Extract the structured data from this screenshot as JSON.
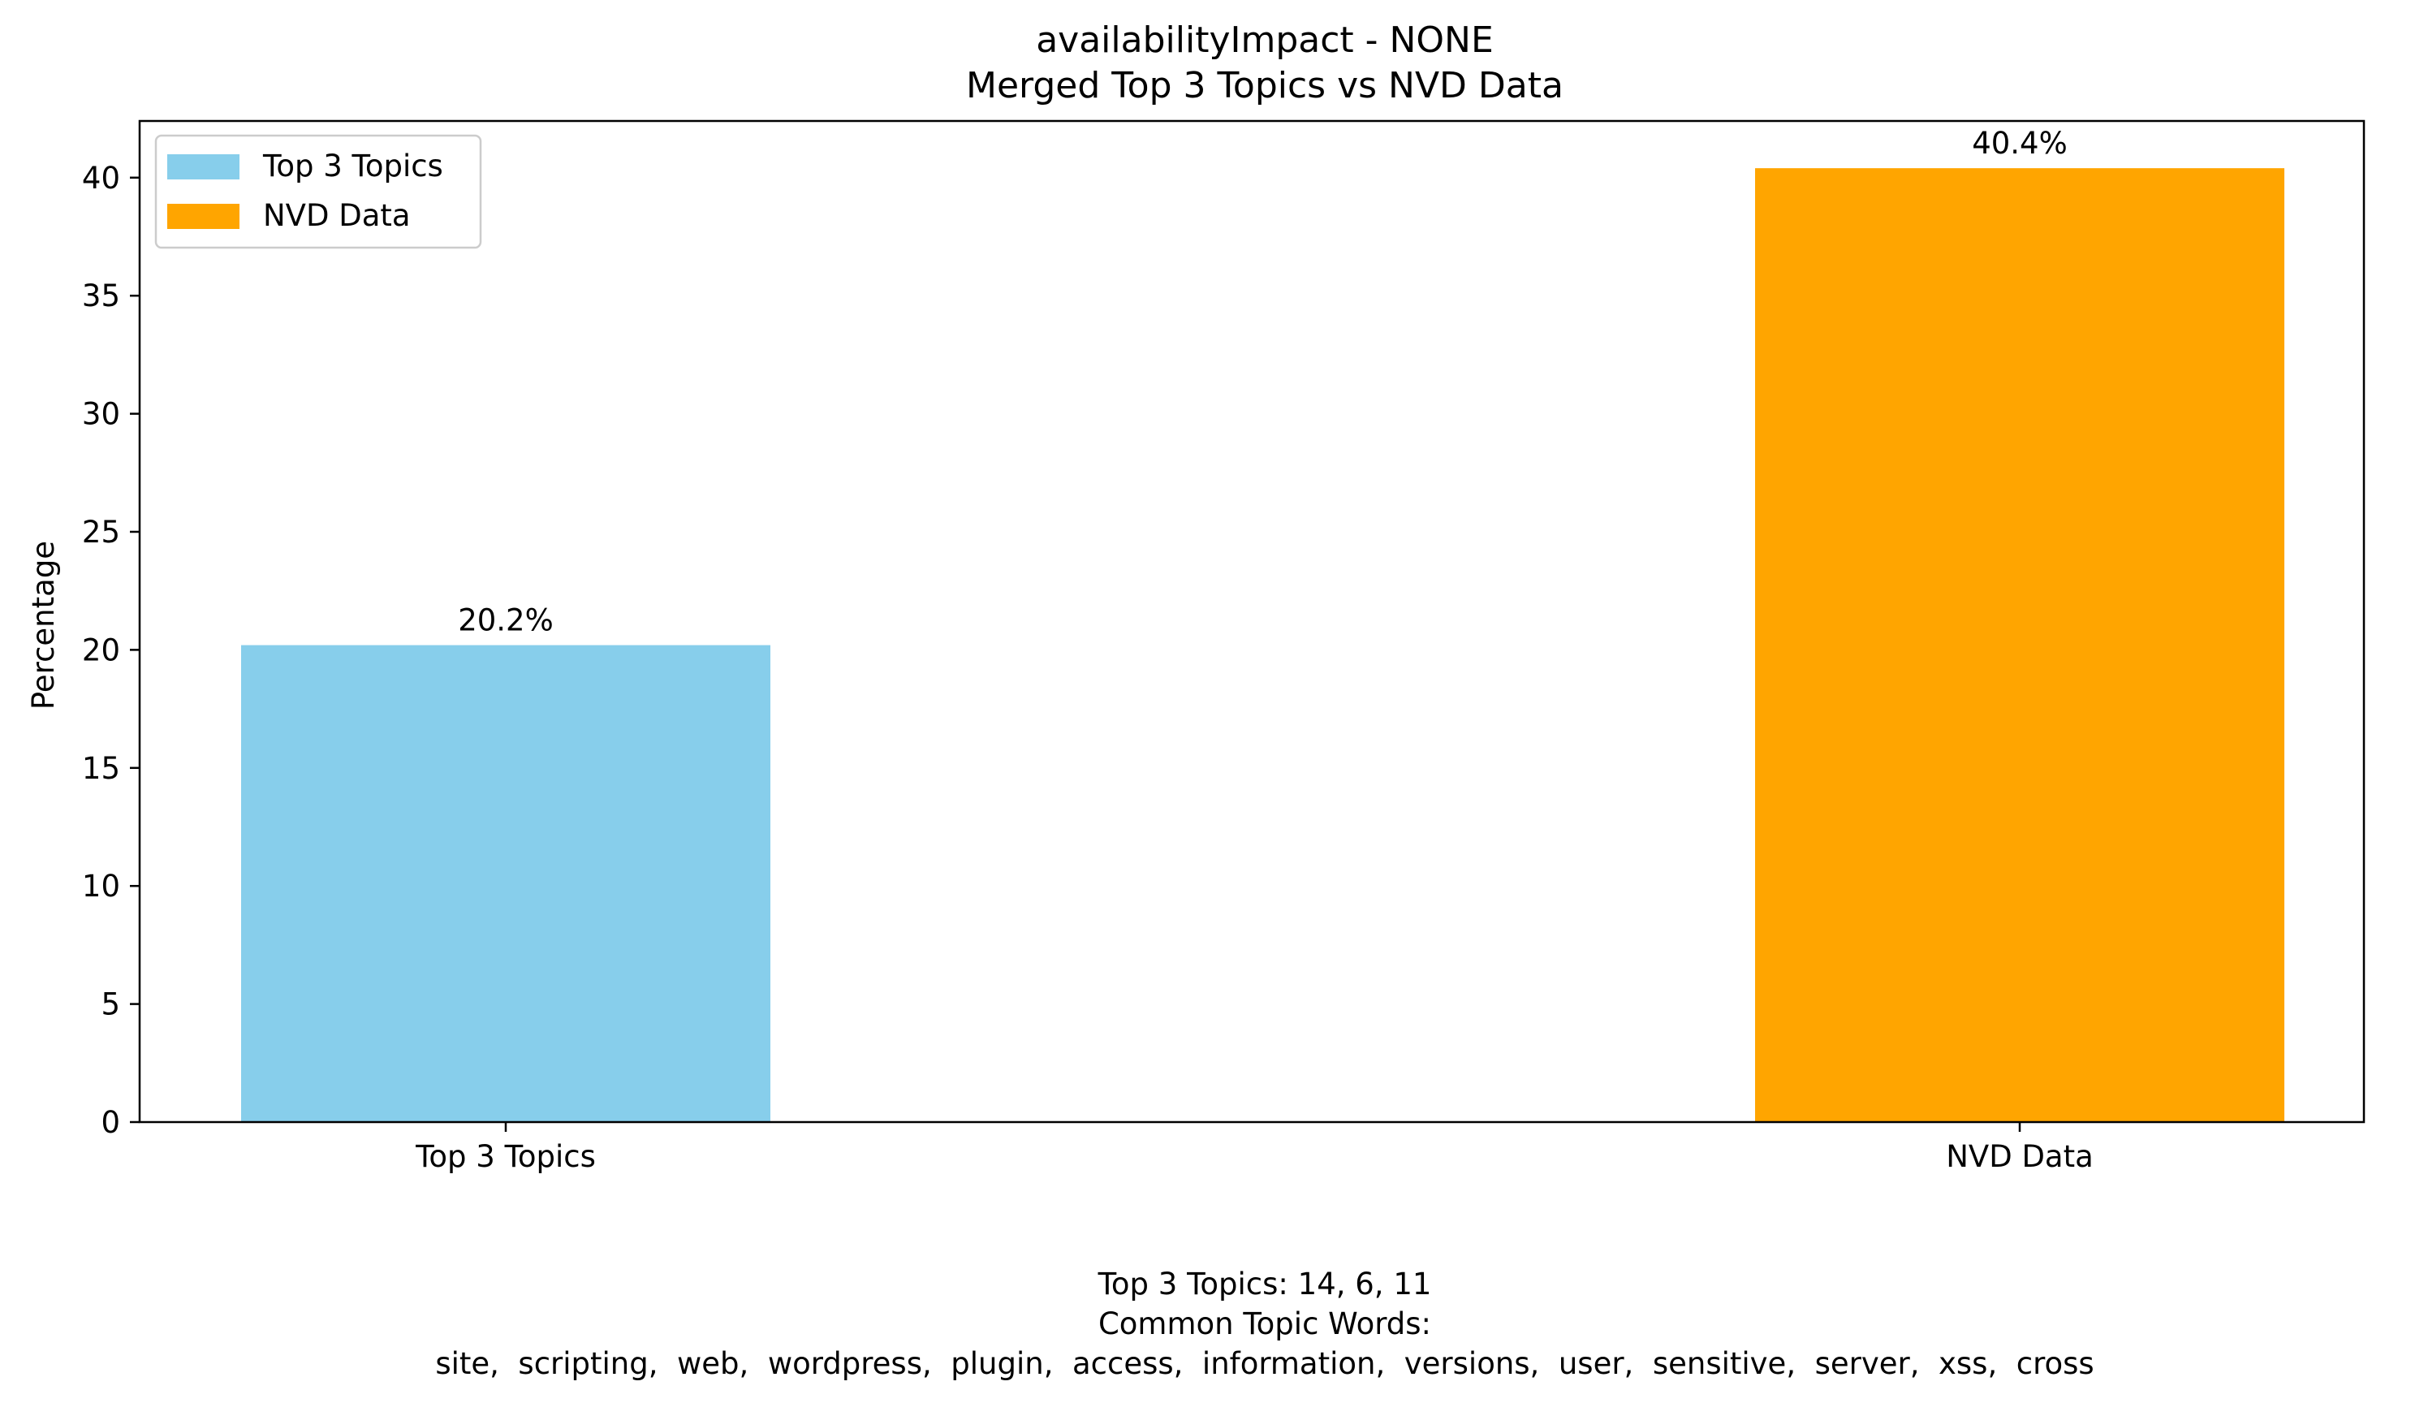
{
  "chart_data": {
    "type": "bar",
    "title": "availabilityImpact - NONE",
    "subtitle": "Merged Top 3 Topics vs NVD Data",
    "categories": [
      "Top 3 Topics",
      "NVD Data"
    ],
    "values": [
      20.2,
      40.4
    ],
    "value_labels": [
      "20.2%",
      "40.4%"
    ],
    "colors": [
      "#87ceeb",
      "#ffa500"
    ],
    "xlabel": "",
    "ylabel": "Percentage",
    "ylim": [
      0,
      42.4
    ],
    "yticks": [
      0,
      5,
      10,
      15,
      20,
      25,
      30,
      35,
      40
    ],
    "grid": false,
    "legend": {
      "position": "top-left",
      "entries": [
        {
          "label": "Top 3 Topics",
          "color": "#87ceeb"
        },
        {
          "label": "NVD Data",
          "color": "#ffa500"
        }
      ]
    },
    "caption": {
      "line1": "Top 3 Topics: 14, 6, 11",
      "line2": "Common Topic Words:",
      "line3": "site,  scripting,  web,  wordpress,  plugin,  access,  information,  versions,  user,  sensitive,  server,  xss,  cross"
    }
  }
}
